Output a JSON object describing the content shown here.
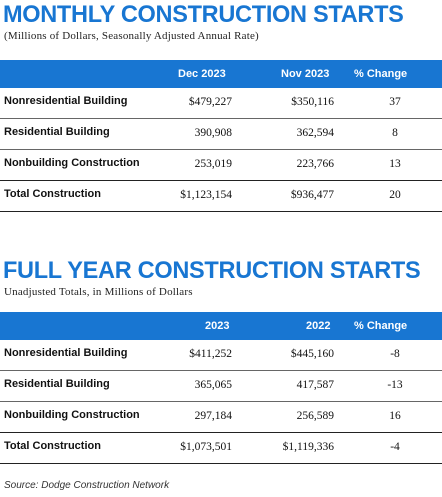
{
  "monthly": {
    "title": "MONTHLY CONSTRUCTION STARTS",
    "subtitle": "(Millions of Dollars, Seasonally Adjusted Annual Rate)",
    "headers": [
      "Dec 2023",
      "Nov 2023",
      "% Change"
    ],
    "rows": [
      {
        "label": "Nonresidential Building",
        "a": "$479,227",
        "b": "$350,116",
        "c": "37"
      },
      {
        "label": "Residential Building",
        "a": "390,908",
        "b": "362,594",
        "c": "8"
      },
      {
        "label": "Nonbuilding Construction",
        "a": "253,019",
        "b": "223,766",
        "c": "13"
      }
    ],
    "total": {
      "label": "Total Construction",
      "a": "$1,123,154",
      "b": "$936,477",
      "c": "20"
    }
  },
  "yearly": {
    "title": "FULL YEAR CONSTRUCTION STARTS",
    "subtitle": "Unadjusted Totals, in Millions of Dollars",
    "headers": [
      "2023",
      "2022",
      "% Change"
    ],
    "rows": [
      {
        "label": "Nonresidential Building",
        "a": "$411,252",
        "b": "$445,160",
        "c": "-8"
      },
      {
        "label": "Residential Building",
        "a": "365,065",
        "b": "417,587",
        "c": "-13"
      },
      {
        "label": "Nonbuilding Construction",
        "a": "297,184",
        "b": "256,589",
        "c": "16"
      }
    ],
    "total": {
      "label": "Total Construction",
      "a": "$1,073,501",
      "b": "$1,119,336",
      "c": "-4"
    }
  },
  "source": "Source: Dodge Construction Network",
  "colors": {
    "accent": "#1876d2"
  }
}
